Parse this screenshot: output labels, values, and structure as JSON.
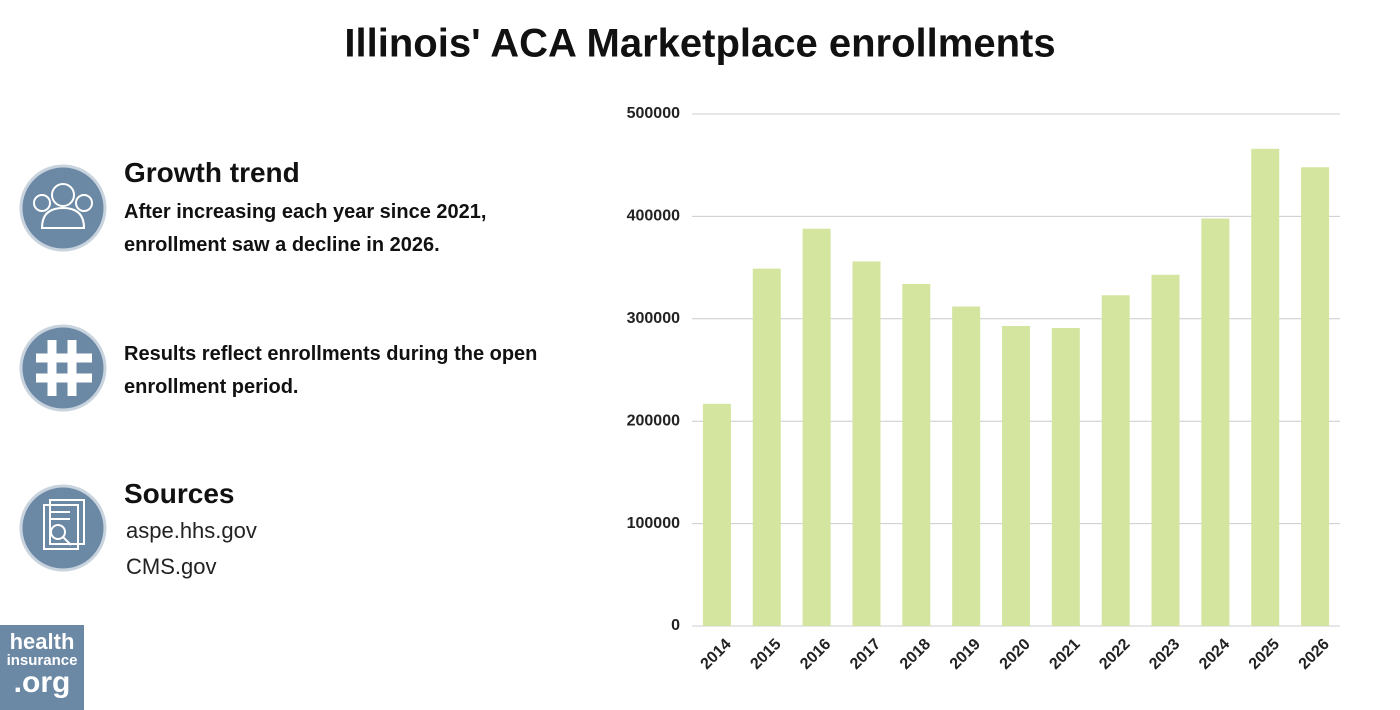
{
  "chart_data": {
    "type": "bar",
    "title": "Illinois' ACA Marketplace enrollments",
    "categories": [
      "2014",
      "2015",
      "2016",
      "2017",
      "2018",
      "2019",
      "2020",
      "2021",
      "2022",
      "2023",
      "2024",
      "2025",
      "2026"
    ],
    "values": [
      217000,
      349000,
      388000,
      356000,
      334000,
      312000,
      293000,
      291000,
      323000,
      343000,
      398000,
      466000,
      448000
    ],
    "color": "#d3e59f",
    "ylim": [
      0,
      500000
    ],
    "yticks": [
      0,
      100000,
      200000,
      300000,
      400000,
      500000
    ],
    "grid": true
  },
  "info": [
    {
      "heading": "Growth trend",
      "text": "After increasing each year since 2021, enrollment saw a decline in 2026."
    },
    {
      "text": "Results reflect enrollments during the open enrollment period."
    },
    {
      "heading": "Sources",
      "lines": [
        "aspe.hhs.gov",
        "CMS.gov"
      ]
    }
  ],
  "logo": {
    "lines": [
      "health",
      "insurance",
      ".org"
    ]
  }
}
